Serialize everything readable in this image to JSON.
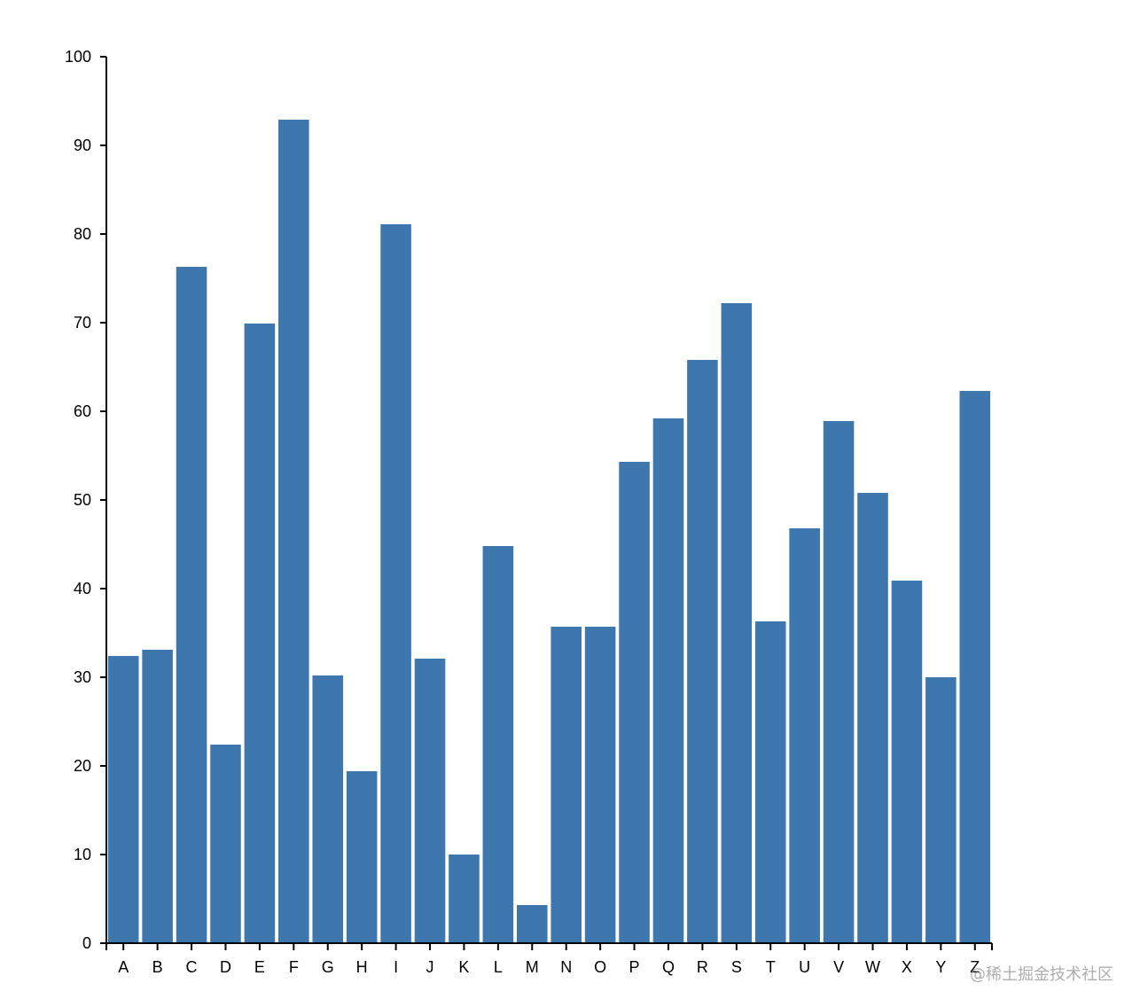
{
  "chart_data": {
    "type": "bar",
    "title": "",
    "xlabel": "",
    "ylabel": "",
    "categories": [
      "A",
      "B",
      "C",
      "D",
      "E",
      "F",
      "G",
      "H",
      "I",
      "J",
      "K",
      "L",
      "M",
      "N",
      "O",
      "P",
      "Q",
      "R",
      "S",
      "T",
      "U",
      "V",
      "W",
      "X",
      "Y",
      "Z"
    ],
    "values": [
      32.4,
      33.1,
      76.3,
      22.4,
      69.9,
      92.9,
      30.2,
      19.4,
      81.1,
      32.1,
      10.0,
      44.8,
      4.3,
      35.7,
      35.7,
      54.3,
      59.2,
      65.8,
      72.2,
      36.3,
      46.8,
      58.9,
      50.8,
      40.9,
      30.0,
      62.3
    ],
    "ylim": [
      0,
      100
    ],
    "yticks": [
      0,
      10,
      20,
      30,
      40,
      50,
      60,
      70,
      80,
      90,
      100
    ],
    "grid": false,
    "legend": null,
    "bar_color": "#3e77ad"
  },
  "watermark": "@稀土掘金技术社区"
}
